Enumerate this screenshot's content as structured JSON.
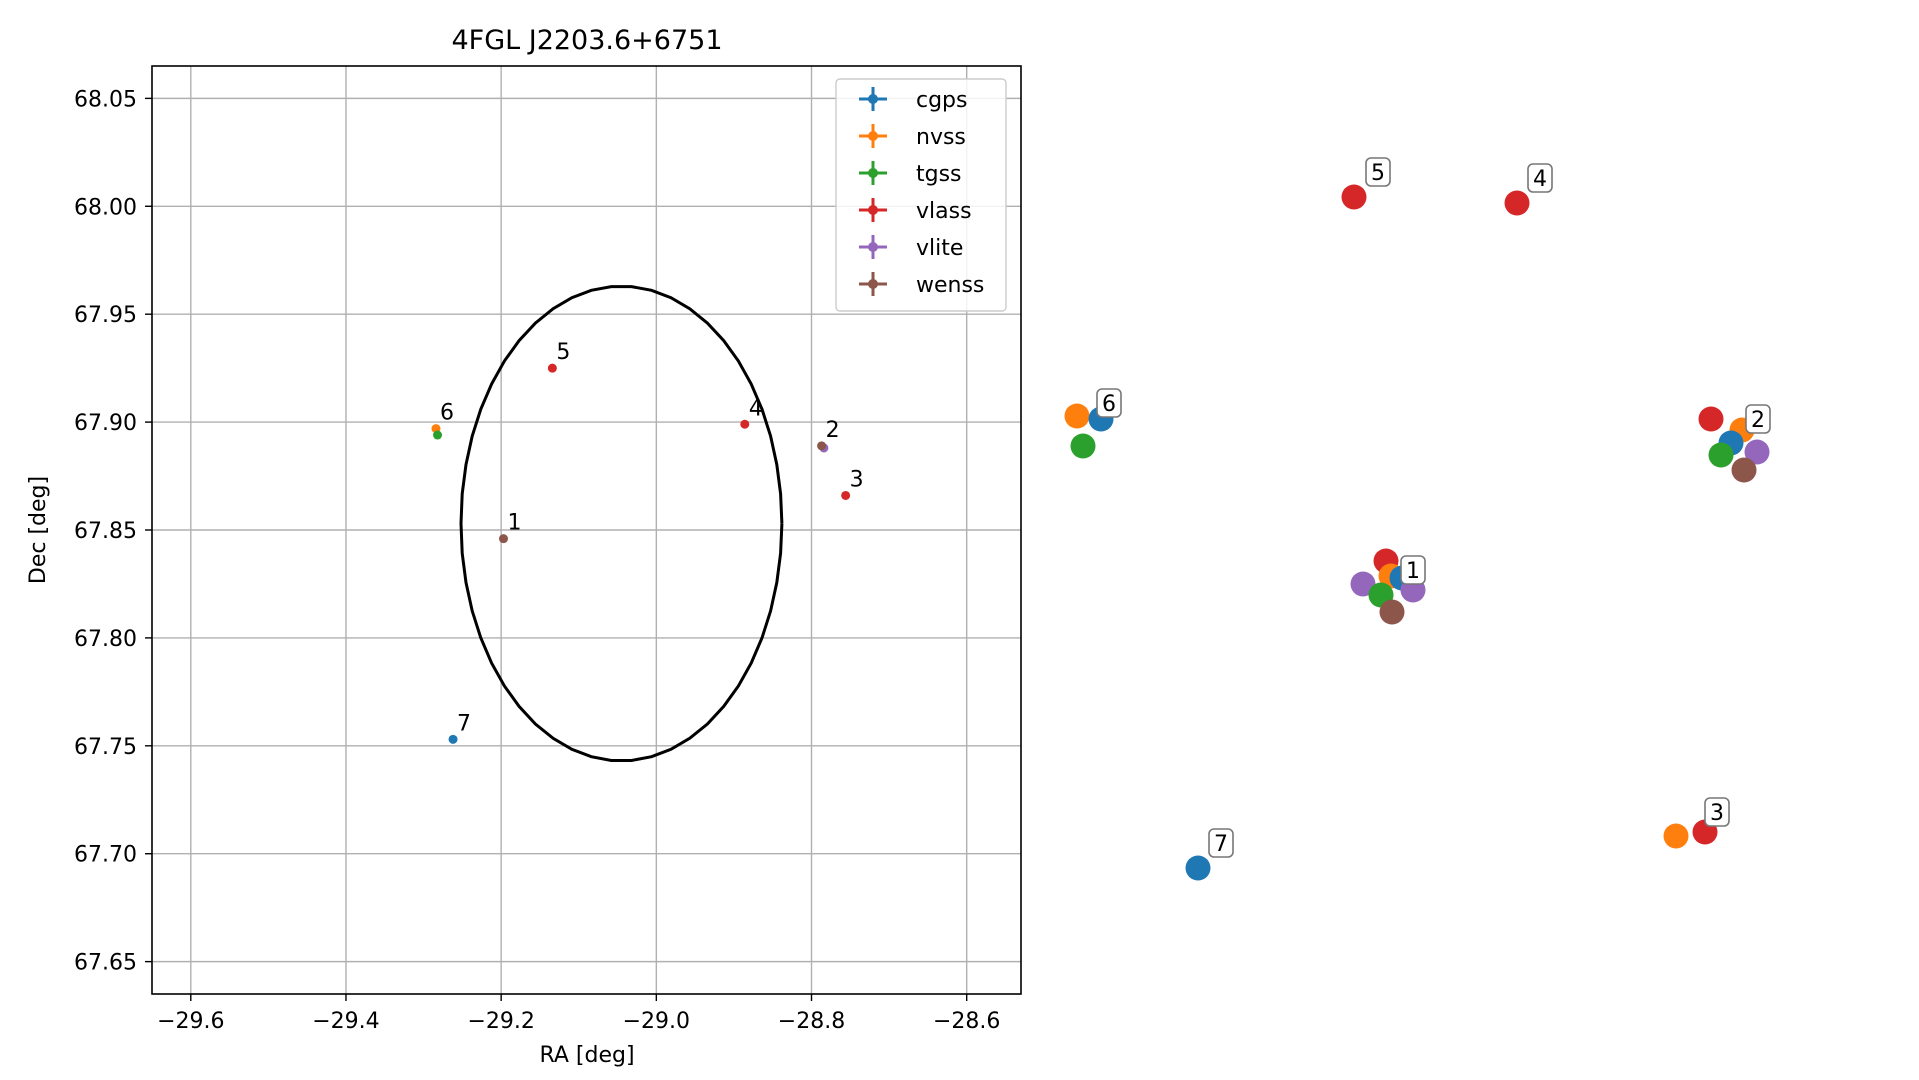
{
  "chart_data": [
    {
      "type": "scatter",
      "title": "4FGL J2203.6+6751",
      "xlabel": "RA [deg]",
      "ylabel": "Dec [deg]",
      "xlim": [
        -29.65,
        -28.53
      ],
      "ylim": [
        67.635,
        68.065
      ],
      "xticks": [
        -29.6,
        -29.4,
        -29.2,
        -29.0,
        -28.8,
        -28.6
      ],
      "xtick_labels": [
        "−29.6",
        "−29.4",
        "−29.2",
        "−29.0",
        "−28.8",
        "−28.6"
      ],
      "yticks": [
        67.65,
        67.7,
        67.75,
        67.8,
        67.85,
        67.9,
        67.95,
        68.0,
        68.05
      ],
      "ytick_labels": [
        "67.65",
        "67.70",
        "67.75",
        "67.80",
        "67.85",
        "67.90",
        "67.95",
        "68.00",
        "68.05"
      ],
      "grid": true,
      "legend_position": "top-right",
      "ellipse": {
        "center": [
          -29.045,
          67.853
        ],
        "semi_major_ra": 0.2068,
        "semi_minor_dec": 0.11
      },
      "series": [
        {
          "name": "cgps",
          "color": "#1f77b4",
          "points": [
            {
              "x": -29.262,
              "y": 67.753
            }
          ]
        },
        {
          "name": "nvss",
          "color": "#ff7f0e",
          "points": [
            {
              "x": -29.284,
              "y": 67.897
            }
          ]
        },
        {
          "name": "tgss",
          "color": "#2ca02c",
          "points": [
            {
              "x": -29.282,
              "y": 67.894
            }
          ]
        },
        {
          "name": "vlass",
          "color": "#d62728",
          "points": [
            {
              "x": -29.134,
              "y": 67.925
            },
            {
              "x": -28.886,
              "y": 67.899
            },
            {
              "x": -28.756,
              "y": 67.866
            }
          ]
        },
        {
          "name": "vlite",
          "color": "#9467bd",
          "points": [
            {
              "x": -28.784,
              "y": 67.888
            }
          ]
        },
        {
          "name": "wenss",
          "color": "#8c564b",
          "points": [
            {
              "x": -29.197,
              "y": 67.846
            },
            {
              "x": -28.787,
              "y": 67.889
            }
          ]
        }
      ],
      "annotations": [
        {
          "label": "1",
          "x": -29.197,
          "y": 67.846
        },
        {
          "label": "2",
          "x": -28.787,
          "y": 67.889
        },
        {
          "label": "3",
          "x": -28.756,
          "y": 67.866
        },
        {
          "label": "4",
          "x": -28.886,
          "y": 67.899
        },
        {
          "label": "5",
          "x": -29.134,
          "y": 67.925
        },
        {
          "label": "6",
          "x": -29.284,
          "y": 67.897
        },
        {
          "label": "7",
          "x": -29.262,
          "y": 67.753
        }
      ]
    },
    {
      "type": "scatter",
      "title": "",
      "axes_visible": false,
      "groups": [
        {
          "label": "1",
          "points": [
            {
              "series": "vlass",
              "color": "#d62728"
            },
            {
              "series": "nvss",
              "color": "#ff7f0e"
            },
            {
              "series": "cgps",
              "color": "#1f77b4"
            },
            {
              "series": "vlite",
              "color": "#9467bd"
            },
            {
              "series": "tgss",
              "color": "#2ca02c"
            },
            {
              "series": "vlite",
              "color": "#9467bd"
            },
            {
              "series": "wenss",
              "color": "#8c564b"
            }
          ]
        },
        {
          "label": "2",
          "points": [
            {
              "series": "vlass",
              "color": "#d62728"
            },
            {
              "series": "nvss",
              "color": "#ff7f0e"
            },
            {
              "series": "cgps",
              "color": "#1f77b4"
            },
            {
              "series": "tgss",
              "color": "#2ca02c"
            },
            {
              "series": "vlite",
              "color": "#9467bd"
            },
            {
              "series": "wenss",
              "color": "#8c564b"
            }
          ]
        },
        {
          "label": "3",
          "points": [
            {
              "series": "nvss",
              "color": "#ff7f0e"
            },
            {
              "series": "vlass",
              "color": "#d62728"
            }
          ]
        },
        {
          "label": "4",
          "points": [
            {
              "series": "vlass",
              "color": "#d62728"
            }
          ]
        },
        {
          "label": "5",
          "points": [
            {
              "series": "vlass",
              "color": "#d62728"
            }
          ]
        },
        {
          "label": "6",
          "points": [
            {
              "series": "nvss",
              "color": "#ff7f0e"
            },
            {
              "series": "cgps",
              "color": "#1f77b4"
            },
            {
              "series": "tgss",
              "color": "#2ca02c"
            }
          ]
        },
        {
          "label": "7",
          "points": [
            {
              "series": "cgps",
              "color": "#1f77b4"
            }
          ]
        }
      ]
    }
  ]
}
